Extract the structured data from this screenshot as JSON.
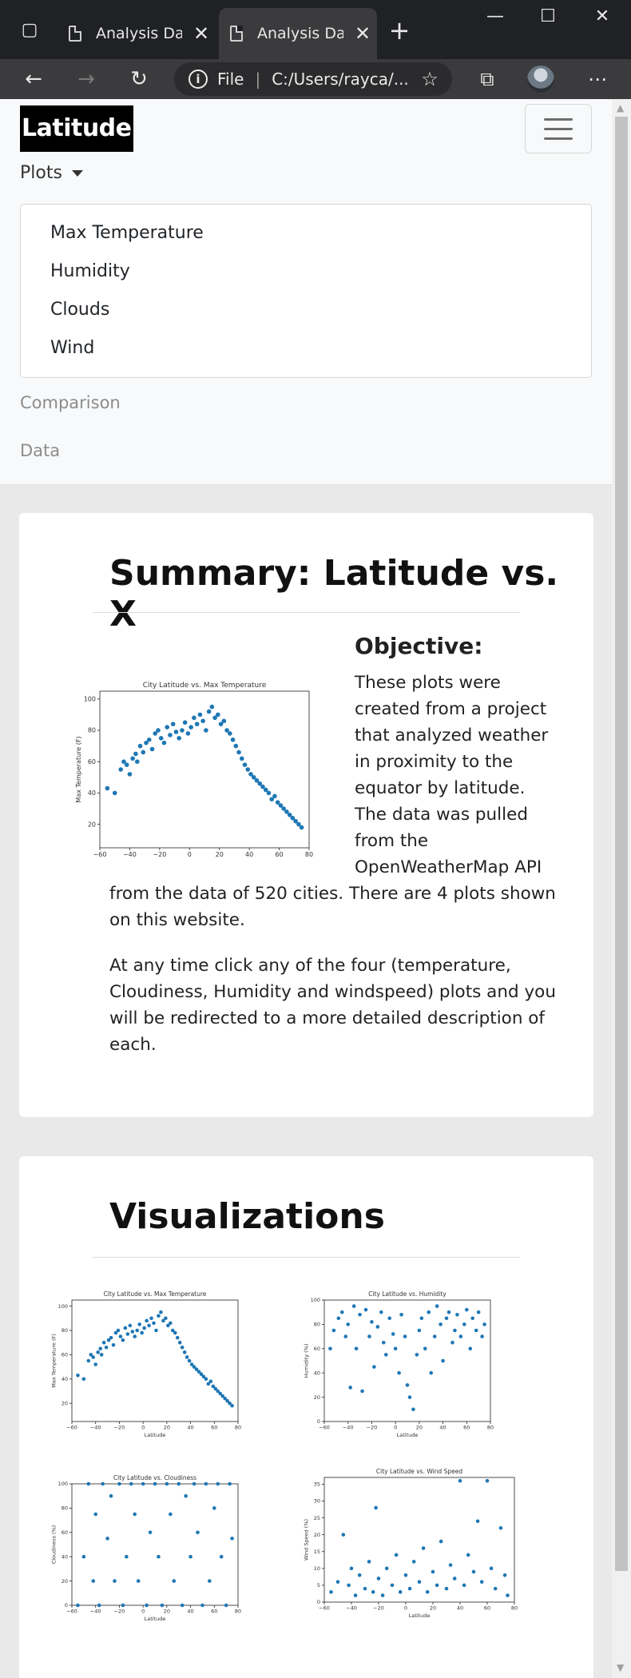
{
  "browser": {
    "tabs": [
      {
        "title": "Analysis Dashboard",
        "close": "✕"
      },
      {
        "title": "Analysis Dashboard",
        "close": "✕"
      }
    ],
    "new_tab": "+",
    "address": {
      "scheme_label": "File",
      "url": "C:/Users/rayca/..."
    }
  },
  "navbar": {
    "brand": "Latitude",
    "dropdown_label": "Plots",
    "dropdown_items": [
      "Max Temperature",
      "Humidity",
      "Clouds",
      "Wind"
    ],
    "links": [
      "Comparison",
      "Data"
    ]
  },
  "summary": {
    "title": "Summary: Latitude vs. X",
    "objective_title": "Objective:",
    "objective_lines": [
      "These plots were",
      "created from a project",
      "that analyzed weather",
      "in proximity to the",
      "equator by latitude.",
      "The data was pulled",
      "from the",
      "OpenWeatherMap API"
    ],
    "continuation_lines": [
      "from the data of 520 cities. There are 4 plots shown",
      "on this website."
    ],
    "paragraph2_lines": [
      "At any time click any of the four (temperature,",
      "Cloudiness, Humidity and windspeed) plots and you",
      "will be redirected to a more detailed description of",
      "each."
    ]
  },
  "visualizations": {
    "title": "Visualizations"
  },
  "chart_data": [
    {
      "type": "scatter",
      "title": "City Latitude vs. Max Temperature",
      "xlabel": "Latitude",
      "ylabel": "Max Temperature (F)",
      "xlim": [
        -60,
        80
      ],
      "ylim": [
        5,
        105
      ],
      "xticks": [
        -60,
        -40,
        -20,
        0,
        20,
        40,
        60,
        80
      ],
      "yticks": [
        20,
        40,
        60,
        80,
        100
      ],
      "color": "#1f77b4",
      "shape": "rise to peak ~95 near latitude 15, falling to ~20 at latitude 75",
      "x": [
        -55,
        -50,
        -46,
        -44,
        -42,
        -40,
        -38,
        -36,
        -35,
        -33,
        -31,
        -29,
        -27,
        -25,
        -23,
        -21,
        -19,
        -17,
        -15,
        -13,
        -11,
        -9,
        -7,
        -5,
        -3,
        -1,
        1,
        3,
        5,
        7,
        9,
        11,
        13,
        15,
        17,
        19,
        21,
        23,
        25,
        27,
        29,
        31,
        33,
        35,
        37,
        39,
        41,
        43,
        45,
        47,
        49,
        51,
        53,
        55,
        57,
        59,
        61,
        63,
        65,
        67,
        69,
        71,
        73,
        75
      ],
      "y": [
        43,
        40,
        55,
        60,
        58,
        52,
        62,
        65,
        60,
        70,
        66,
        72,
        74,
        68,
        78,
        80,
        75,
        72,
        82,
        77,
        84,
        79,
        75,
        80,
        85,
        78,
        82,
        88,
        84,
        90,
        86,
        80,
        92,
        95,
        88,
        90,
        84,
        86,
        80,
        78,
        74,
        70,
        66,
        62,
        58,
        55,
        52,
        50,
        48,
        46,
        44,
        42,
        40,
        36,
        38,
        34,
        32,
        30,
        28,
        26,
        24,
        22,
        20,
        18
      ]
    },
    {
      "type": "scatter",
      "title": "City Latitude vs. Humidity",
      "xlabel": "Latitude",
      "ylabel": "Humidity (%)",
      "xlim": [
        -60,
        80
      ],
      "ylim": [
        0,
        100
      ],
      "xticks": [
        -60,
        -40,
        -20,
        0,
        20,
        40,
        60,
        80
      ],
      "yticks": [
        0,
        20,
        40,
        60,
        80,
        100
      ],
      "color": "#1f77b4",
      "x": [
        -55,
        -52,
        -48,
        -45,
        -42,
        -40,
        -38,
        -35,
        -33,
        -30,
        -28,
        -25,
        -22,
        -20,
        -18,
        -15,
        -12,
        -10,
        -8,
        -5,
        -2,
        0,
        3,
        5,
        8,
        10,
        12,
        15,
        18,
        20,
        22,
        25,
        28,
        30,
        33,
        35,
        38,
        40,
        43,
        45,
        48,
        50,
        52,
        55,
        58,
        60,
        63,
        65,
        68,
        70,
        73,
        75
      ],
      "y": [
        60,
        75,
        85,
        90,
        70,
        80,
        28,
        95,
        60,
        88,
        25,
        92,
        70,
        82,
        45,
        78,
        90,
        65,
        55,
        85,
        72,
        60,
        40,
        88,
        70,
        30,
        20,
        10,
        55,
        75,
        85,
        60,
        90,
        40,
        70,
        95,
        80,
        50,
        85,
        90,
        65,
        75,
        88,
        70,
        80,
        92,
        60,
        85,
        75,
        90,
        70,
        80
      ]
    },
    {
      "type": "scatter",
      "title": "City Latitude vs. Cloudiness",
      "xlabel": "Latitude",
      "ylabel": "Cloudiness (%)",
      "xlim": [
        -60,
        80
      ],
      "ylim": [
        0,
        100
      ],
      "xticks": [
        -60,
        -40,
        -20,
        0,
        20,
        40,
        60,
        80
      ],
      "yticks": [
        0,
        20,
        40,
        60,
        80,
        100
      ],
      "color": "#1f77b4",
      "x": [
        -55,
        -50,
        -46,
        -42,
        -40,
        -37,
        -34,
        -30,
        -27,
        -24,
        -20,
        -17,
        -14,
        -10,
        -7,
        -4,
        0,
        3,
        6,
        10,
        13,
        16,
        20,
        23,
        26,
        30,
        33,
        36,
        40,
        43,
        46,
        50,
        53,
        56,
        60,
        63,
        66,
        70,
        73,
        75
      ],
      "y": [
        0,
        40,
        100,
        20,
        75,
        0,
        100,
        55,
        90,
        20,
        100,
        0,
        40,
        100,
        75,
        20,
        100,
        0,
        60,
        100,
        40,
        0,
        100,
        75,
        20,
        100,
        0,
        90,
        40,
        100,
        60,
        0,
        100,
        20,
        80,
        100,
        40,
        0,
        100,
        55
      ]
    },
    {
      "type": "scatter",
      "title": "City Latitude vs. Wind Speed",
      "xlabel": "Latitude",
      "ylabel": "Wind Speed (%)",
      "xlim": [
        -60,
        80
      ],
      "ylim": [
        0,
        37
      ],
      "xticks": [
        -60,
        -40,
        -20,
        0,
        20,
        40,
        60,
        80
      ],
      "yticks": [
        0,
        5,
        10,
        15,
        20,
        25,
        30,
        35
      ],
      "color": "#1f77b4",
      "x": [
        -55,
        -50,
        -46,
        -42,
        -40,
        -37,
        -34,
        -30,
        -27,
        -24,
        -22,
        -20,
        -17,
        -14,
        -10,
        -7,
        -4,
        0,
        3,
        6,
        10,
        13,
        16,
        20,
        23,
        26,
        30,
        33,
        36,
        40,
        43,
        46,
        50,
        53,
        56,
        60,
        63,
        66,
        70,
        73,
        75
      ],
      "y": [
        3,
        6,
        20,
        5,
        10,
        2,
        8,
        4,
        12,
        3,
        28,
        7,
        2,
        10,
        5,
        14,
        3,
        8,
        4,
        12,
        6,
        16,
        3,
        9,
        5,
        18,
        4,
        11,
        7,
        36,
        5,
        14,
        9,
        24,
        6,
        36,
        10,
        4,
        22,
        8,
        2
      ]
    }
  ]
}
